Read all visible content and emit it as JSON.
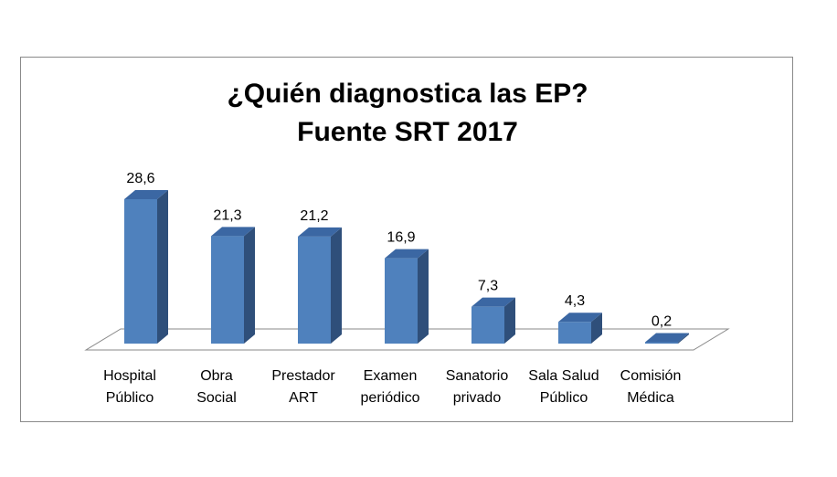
{
  "chart_data": {
    "type": "bar",
    "title": [
      "¿Quién diagnostica las EP?",
      "Fuente SRT 2017"
    ],
    "categories": [
      [
        "Hospital",
        "Público"
      ],
      [
        "Obra",
        "Social"
      ],
      [
        "Prestador",
        "ART"
      ],
      [
        "Examen",
        "periódico"
      ],
      [
        "Sanatorio",
        "privado"
      ],
      [
        "Sala Salud",
        "Público"
      ],
      [
        "Comisión",
        "Médica"
      ]
    ],
    "values": [
      28.6,
      21.3,
      21.2,
      16.9,
      7.3,
      4.3,
      0.2
    ],
    "data_labels": [
      "28,6",
      "21,3",
      "21,2",
      "16,9",
      "7,3",
      "4,3",
      "0,2"
    ],
    "ylim": [
      0,
      30
    ],
    "grid": false,
    "legend": "none",
    "style": "3d-columns",
    "colors": {
      "front": "#4f81bd",
      "side": "#2f4f7a",
      "top": "#3b67a3",
      "floor_stroke": "#8a8a8a"
    }
  }
}
